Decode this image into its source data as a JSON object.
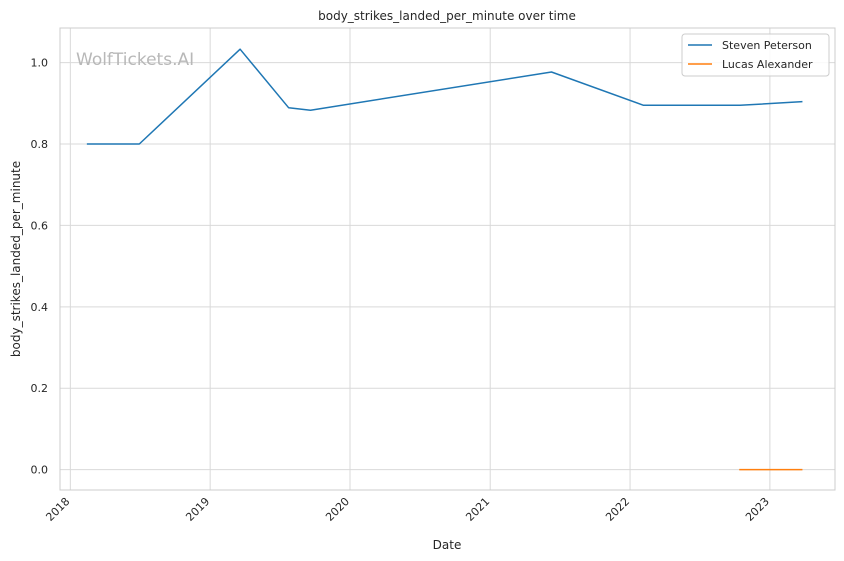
{
  "chart_data": {
    "type": "line",
    "title": "body_strikes_landed_per_minute over time",
    "xlabel": "Date",
    "ylabel": "body_strikes_landed_per_minute",
    "watermark": "WolfTickets.AI",
    "x_ticks": [
      "2018",
      "2019",
      "2020",
      "2021",
      "2022",
      "2023"
    ],
    "y_ticks": [
      "0.0",
      "0.2",
      "0.4",
      "0.6",
      "0.8",
      "1.0"
    ],
    "xlim": [
      "2017-12-05",
      "2023-06-20"
    ],
    "ylim": [
      -0.05,
      1.085
    ],
    "grid": true,
    "legend_position": "top-right",
    "series": [
      {
        "name": "Steven Peterson",
        "color": "#1f77b4",
        "points": [
          {
            "date": "2018-02-15",
            "value": 0.8
          },
          {
            "date": "2018-06-30",
            "value": 0.8
          },
          {
            "date": "2019-03-20",
            "value": 1.033
          },
          {
            "date": "2019-07-25",
            "value": 0.889
          },
          {
            "date": "2019-09-20",
            "value": 0.883
          },
          {
            "date": "2021-06-10",
            "value": 0.977
          },
          {
            "date": "2022-02-05",
            "value": 0.895
          },
          {
            "date": "2022-10-15",
            "value": 0.895
          },
          {
            "date": "2023-03-25",
            "value": 0.904
          }
        ]
      },
      {
        "name": "Lucas Alexander",
        "color": "#ff7f0e",
        "points": [
          {
            "date": "2022-10-15",
            "value": 0.0
          },
          {
            "date": "2023-03-25",
            "value": 0.0
          }
        ]
      }
    ]
  }
}
